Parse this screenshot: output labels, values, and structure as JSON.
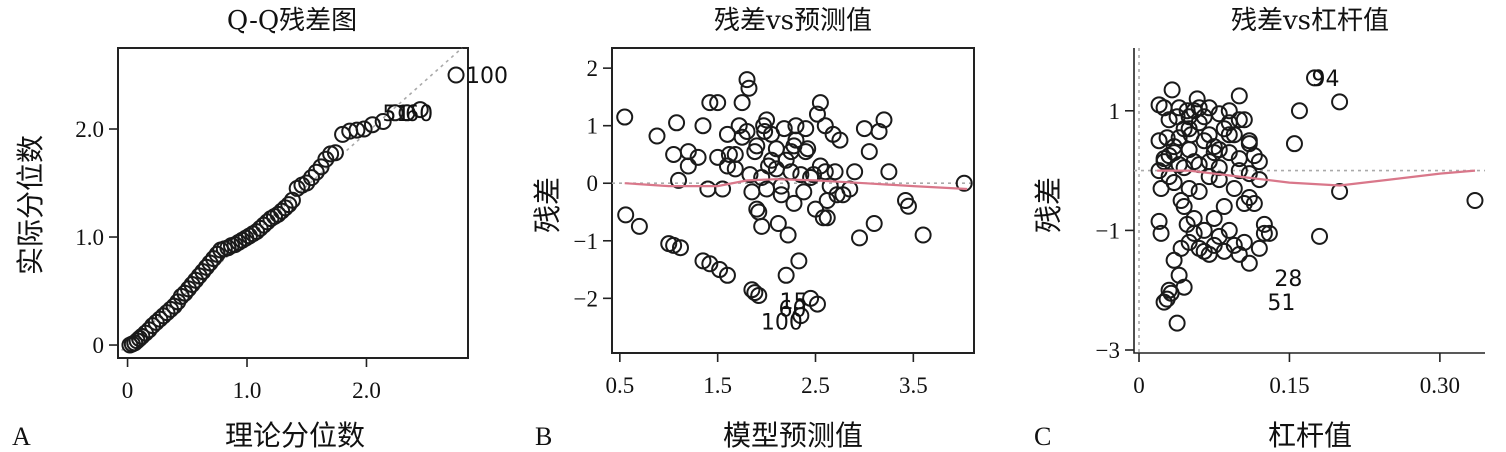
{
  "chart_data": [
    {
      "id": "A",
      "type": "scatter",
      "panel_letter": "A",
      "title": "Q-Q残差图",
      "xlabel": "理论分位数",
      "ylabel": "实际分位数",
      "xlim": [
        -0.08,
        2.85
      ],
      "ylim": [
        -0.12,
        2.75
      ],
      "xticks": [
        0,
        1.0,
        2.0
      ],
      "xtick_labels": [
        "0",
        "1.0",
        "2.0"
      ],
      "yticks": [
        0,
        1.0,
        2.0
      ],
      "ytick_labels": [
        "0",
        "1.0",
        "2.0"
      ],
      "reference_line": {
        "from": [
          -0.05,
          -0.05
        ],
        "to": [
          2.8,
          2.75
        ]
      },
      "x": [
        0.02,
        0.04,
        0.06,
        0.08,
        0.1,
        0.12,
        0.15,
        0.18,
        0.21,
        0.24,
        0.27,
        0.3,
        0.33,
        0.36,
        0.39,
        0.42,
        0.45,
        0.48,
        0.51,
        0.54,
        0.57,
        0.6,
        0.63,
        0.66,
        0.69,
        0.72,
        0.75,
        0.78,
        0.81,
        0.84,
        0.87,
        0.9,
        0.93,
        0.96,
        0.99,
        1.02,
        1.05,
        1.08,
        1.11,
        1.14,
        1.17,
        1.2,
        1.23,
        1.26,
        1.29,
        1.32,
        1.35,
        1.38,
        1.42,
        1.46,
        1.5,
        1.54,
        1.58,
        1.62,
        1.66,
        1.7,
        1.74,
        1.8,
        1.86,
        1.92,
        1.98,
        2.05,
        2.14,
        2.24,
        2.34,
        2.45,
        2.75
      ],
      "y": [
        0.0,
        0.01,
        0.02,
        0.04,
        0.06,
        0.08,
        0.11,
        0.14,
        0.18,
        0.21,
        0.24,
        0.27,
        0.3,
        0.33,
        0.36,
        0.4,
        0.45,
        0.48,
        0.52,
        0.56,
        0.6,
        0.64,
        0.68,
        0.72,
        0.76,
        0.8,
        0.84,
        0.88,
        0.89,
        0.9,
        0.92,
        0.93,
        0.95,
        0.97,
        0.99,
        1.01,
        1.03,
        1.05,
        1.08,
        1.11,
        1.14,
        1.17,
        1.19,
        1.21,
        1.24,
        1.27,
        1.3,
        1.34,
        1.45,
        1.48,
        1.5,
        1.55,
        1.6,
        1.65,
        1.72,
        1.77,
        1.78,
        1.95,
        1.98,
        1.99,
        2.0,
        2.04,
        2.07,
        2.15,
        2.15,
        2.18,
        2.5
      ],
      "point_labels": [
        {
          "text": "100",
          "x": 2.75,
          "y": 2.5
        },
        {
          "text": "51",
          "x": 2.05,
          "y": 2.15
        },
        {
          "text": "60",
          "x": 2.24,
          "y": 2.15
        }
      ]
    },
    {
      "id": "B",
      "type": "scatter",
      "panel_letter": "B",
      "title": "残差vs预测值",
      "xlabel": "模型预测值",
      "ylabel": "残差",
      "xlim": [
        0.42,
        4.12
      ],
      "ylim": [
        -2.95,
        2.35
      ],
      "xticks": [
        0.5,
        1.5,
        2.5,
        3.5
      ],
      "xtick_labels": [
        "0.5",
        "1.5",
        "2.5",
        "3.5"
      ],
      "yticks": [
        -2,
        -1,
        0,
        1,
        2
      ],
      "ytick_labels": [
        "−2",
        "−1",
        "0",
        "1",
        "2"
      ],
      "reference_y": 0,
      "smooth": {
        "x": [
          0.55,
          1.0,
          1.5,
          1.8,
          2.1,
          2.5,
          3.0,
          3.5,
          4.05
        ],
        "y": [
          0.0,
          -0.05,
          -0.05,
          0.05,
          0.07,
          0.05,
          0.0,
          -0.05,
          -0.1
        ]
      },
      "x": [
        0.55,
        0.56,
        0.7,
        0.88,
        1.05,
        1.08,
        1.1,
        1.2,
        1.35,
        1.42,
        1.5,
        1.55,
        1.6,
        1.62,
        1.68,
        1.75,
        1.8,
        1.82,
        1.83,
        1.85,
        1.88,
        1.9,
        1.92,
        1.95,
        1.97,
        2.0,
        2.02,
        2.05,
        2.1,
        2.12,
        2.15,
        2.18,
        2.2,
        2.22,
        2.25,
        2.28,
        2.3,
        2.35,
        2.38,
        2.4,
        2.42,
        2.45,
        2.5,
        2.52,
        2.55,
        2.58,
        2.6,
        2.62,
        2.65,
        2.7,
        2.75,
        2.78,
        2.85,
        2.95,
        3.05,
        3.1,
        3.15,
        3.25,
        3.42,
        3.45,
        3.6,
        4.02,
        1.0,
        1.05,
        1.12,
        1.35,
        1.42,
        1.52,
        1.6,
        1.85,
        1.88,
        1.92,
        2.35,
        2.45,
        2.52,
        1.5,
        1.72,
        1.9,
        1.95,
        1.68,
        2.0,
        2.25,
        2.55,
        2.68,
        1.2,
        1.3,
        1.8,
        2.05,
        2.3,
        2.6,
        2.9,
        3.0,
        3.2,
        1.6,
        1.75,
        2.1,
        2.4,
        2.48,
        2.62,
        1.4,
        1.98,
        2.15,
        2.28,
        2.72,
        2.33,
        2.2
      ],
      "y": [
        1.15,
        -0.55,
        -0.75,
        0.82,
        0.5,
        1.05,
        0.05,
        0.3,
        1.0,
        1.4,
        0.45,
        -0.1,
        0.85,
        0.5,
        0.25,
        1.4,
        1.8,
        1.65,
        0.15,
        -0.15,
        0.55,
        -0.45,
        -0.5,
        0.1,
        1.0,
        1.1,
        0.3,
        0.85,
        0.6,
        -0.7,
        -0.2,
        0.95,
        0.4,
        -0.9,
        0.2,
        -0.35,
        1.0,
        0.15,
        -0.15,
        0.95,
        0.6,
        0.1,
        -0.45,
        1.2,
        1.4,
        -0.6,
        1.0,
        -0.3,
        -0.05,
        0.2,
        0.75,
        -0.2,
        -0.1,
        -0.95,
        0.55,
        -0.7,
        0.9,
        0.2,
        -0.3,
        -0.4,
        -0.9,
        0.0,
        -1.05,
        -1.08,
        -1.12,
        -1.35,
        -1.4,
        -1.5,
        -1.6,
        -1.85,
        -1.9,
        -1.95,
        -2.3,
        -2.0,
        -2.1,
        1.4,
        1.0,
        0.65,
        -0.75,
        0.5,
        -0.1,
        0.55,
        0.3,
        0.85,
        0.55,
        0.45,
        0.9,
        0.4,
        0.75,
        0.2,
        0.2,
        0.95,
        1.1,
        0.3,
        0.8,
        0.25,
        0.55,
        0.15,
        -0.6,
        -0.1,
        0.9,
        -0.05,
        0.65,
        -0.2,
        -1.35,
        -1.6
      ],
      "point_labels": [
        {
          "text": "15",
          "x": 2.03,
          "y": -2.05
        },
        {
          "text": "60",
          "x": 2.02,
          "y": -2.18
        },
        {
          "text": "100",
          "x": 1.84,
          "y": -2.4
        }
      ]
    },
    {
      "id": "C",
      "type": "scatter",
      "panel_letter": "C",
      "title": "残差vs杠杆值",
      "xlabel": "杠杆值",
      "ylabel": "残差",
      "xlim": [
        -0.005,
        0.345
      ],
      "ylim": [
        -3.05,
        2.05
      ],
      "xticks": [
        0,
        0.15,
        0.3
      ],
      "xtick_labels": [
        "0",
        "0.15",
        "0.30"
      ],
      "yticks": [
        -3,
        -1,
        1
      ],
      "ytick_labels": [
        "−3",
        "−1",
        "1"
      ],
      "reference_x": 0,
      "reference_y": 0,
      "smooth": {
        "x": [
          0.018,
          0.05,
          0.1,
          0.15,
          0.2,
          0.25,
          0.3,
          0.335
        ],
        "y": [
          0.0,
          0.0,
          -0.1,
          -0.2,
          -0.25,
          -0.15,
          -0.05,
          0.0
        ]
      },
      "x": [
        0.02,
        0.02,
        0.022,
        0.025,
        0.025,
        0.028,
        0.03,
        0.03,
        0.033,
        0.035,
        0.035,
        0.038,
        0.04,
        0.04,
        0.042,
        0.045,
        0.045,
        0.048,
        0.05,
        0.05,
        0.052,
        0.055,
        0.055,
        0.058,
        0.06,
        0.06,
        0.065,
        0.065,
        0.07,
        0.07,
        0.075,
        0.075,
        0.08,
        0.08,
        0.085,
        0.085,
        0.09,
        0.09,
        0.095,
        0.095,
        0.1,
        0.1,
        0.105,
        0.105,
        0.11,
        0.11,
        0.115,
        0.12,
        0.125,
        0.02,
        0.022,
        0.025,
        0.028,
        0.03,
        0.032,
        0.035,
        0.038,
        0.04,
        0.042,
        0.045,
        0.048,
        0.05,
        0.055,
        0.06,
        0.065,
        0.07,
        0.075,
        0.08,
        0.085,
        0.09,
        0.095,
        0.1,
        0.105,
        0.11,
        0.12,
        0.13,
        0.125,
        0.115,
        0.045,
        0.05,
        0.055,
        0.06,
        0.065,
        0.07,
        0.075,
        0.08,
        0.09,
        0.1,
        0.11,
        0.12,
        0.155,
        0.16,
        0.175,
        0.18,
        0.2,
        0.2,
        0.335,
        0.02,
        0.025,
        0.03,
        0.035,
        0.04,
        0.05,
        0.06,
        0.07,
        0.08,
        0.09,
        0.1,
        0.11
      ],
      "y": [
        1.1,
        0.5,
        -0.3,
        1.05,
        0.2,
        0.55,
        0.85,
        -0.1,
        1.35,
        0.3,
        -0.2,
        0.9,
        1.05,
        0.1,
        -0.5,
        0.7,
        -0.6,
        1.0,
        0.35,
        -0.3,
        0.6,
        -0.8,
        0.15,
        1.2,
        0.8,
        -0.35,
        0.5,
        -1.0,
        1.05,
        0.15,
        0.4,
        -0.8,
        0.95,
        -0.15,
        0.7,
        -0.6,
        1.0,
        0.3,
        0.6,
        -0.3,
        1.25,
        0.0,
        0.85,
        -0.55,
        0.45,
        -0.45,
        0.25,
        -0.15,
        -1.05,
        -0.85,
        -1.05,
        -2.2,
        -2.15,
        -2.0,
        -2.05,
        -1.5,
        -2.55,
        -1.75,
        -1.3,
        -1.95,
        -0.9,
        -1.2,
        -1.05,
        -1.3,
        -1.35,
        -1.4,
        -1.25,
        -1.1,
        -1.35,
        -1.0,
        -1.25,
        -1.4,
        -1.2,
        -1.55,
        -1.3,
        -1.05,
        -0.9,
        -0.55,
        0.05,
        0.9,
        1.0,
        1.05,
        0.9,
        0.6,
        0.3,
        0.05,
        0.8,
        0.85,
        0.5,
        0.15,
        0.45,
        1.0,
        1.55,
        -1.1,
        1.15,
        -0.35,
        -0.5,
        0.0,
        0.15,
        0.25,
        0.4,
        0.55,
        0.7,
        0.1,
        -0.1,
        0.35,
        0.6,
        0.2,
        -0.05
      ],
      "point_labels": [
        {
          "text": "94",
          "x": 0.162,
          "y": 1.55
        },
        {
          "text": "28",
          "x": 0.125,
          "y": -1.8
        },
        {
          "text": "51",
          "x": 0.118,
          "y": -2.2
        }
      ]
    }
  ]
}
